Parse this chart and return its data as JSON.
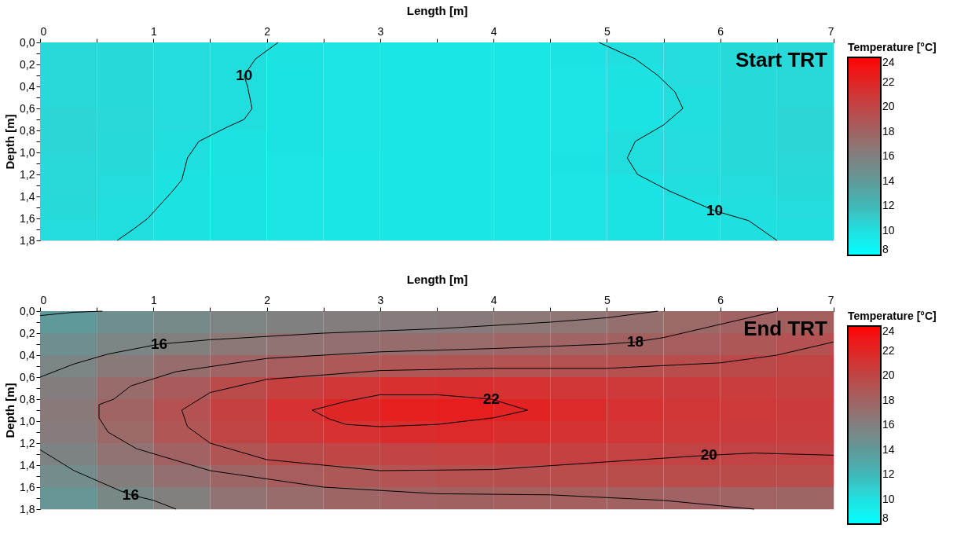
{
  "chart_data": [
    {
      "type": "heatmap",
      "title": "Start TRT",
      "xlabel": "Length [m]",
      "ylabel": "Depth [m]",
      "clabel": "Temperature [°C]",
      "x": [
        0.25,
        0.75,
        1.25,
        1.75,
        2.25,
        2.75,
        3.25,
        3.75,
        4.25,
        4.75,
        5.25,
        5.75,
        6.25,
        6.75
      ],
      "y": [
        0.1,
        0.3,
        0.5,
        0.7,
        0.9,
        1.1,
        1.3,
        1.5,
        1.7
      ],
      "cells": [
        [
          10.4,
          10.3,
          10.2,
          10.1,
          9.9,
          9.7,
          9.6,
          9.6,
          9.6,
          9.8,
          10.1,
          10.2,
          10.3,
          10.4
        ],
        [
          10.4,
          10.3,
          10.2,
          10.1,
          9.8,
          9.7,
          9.6,
          9.6,
          9.6,
          9.7,
          9.9,
          10.2,
          10.3,
          10.4
        ],
        [
          10.4,
          10.3,
          10.2,
          10.1,
          9.8,
          9.7,
          9.6,
          9.6,
          9.6,
          9.7,
          9.8,
          10.1,
          10.3,
          10.4
        ],
        [
          10.5,
          10.4,
          10.2,
          10.1,
          9.8,
          9.7,
          9.6,
          9.6,
          9.6,
          9.7,
          9.8,
          10.1,
          10.3,
          10.5
        ],
        [
          10.5,
          10.3,
          10.1,
          9.9,
          9.8,
          9.7,
          9.6,
          9.6,
          9.6,
          9.7,
          10.1,
          10.2,
          10.3,
          10.5
        ],
        [
          10.4,
          10.3,
          10.0,
          9.9,
          9.7,
          9.6,
          9.6,
          9.6,
          9.6,
          9.8,
          10.1,
          10.2,
          10.3,
          10.4
        ],
        [
          10.4,
          10.2,
          9.9,
          9.8,
          9.7,
          9.6,
          9.6,
          9.6,
          9.6,
          9.7,
          9.8,
          10.1,
          10.2,
          10.3
        ],
        [
          10.3,
          10.1,
          9.9,
          9.8,
          9.7,
          9.6,
          9.6,
          9.6,
          9.6,
          9.7,
          9.8,
          9.9,
          10.1,
          10.2
        ],
        [
          10.2,
          10.1,
          9.9,
          9.8,
          9.7,
          9.6,
          9.6,
          9.6,
          9.6,
          9.7,
          9.8,
          9.9,
          10.0,
          10.1
        ]
      ],
      "xlim": [
        0,
        7
      ],
      "xticks": [
        0,
        {
          "value": 0.5,
          "label": null
        },
        1,
        {
          "value": 1.5,
          "label": null
        },
        2,
        {
          "value": 2.5,
          "label": null
        },
        3,
        {
          "value": 3.5,
          "label": null
        },
        4,
        {
          "value": 4.5,
          "label": null
        },
        5,
        {
          "value": 5.5,
          "label": null
        },
        6,
        {
          "value": 6.5,
          "label": null
        },
        7
      ],
      "ylim": [
        1.8,
        0
      ],
      "yticks": [
        {
          "value": 0,
          "label": "0,0"
        },
        {
          "value": 0.1,
          "label": null
        },
        {
          "value": 0.2,
          "label": "0,2"
        },
        {
          "value": 0.3,
          "label": null
        },
        {
          "value": 0.4,
          "label": "0,4"
        },
        {
          "value": 0.5,
          "label": null
        },
        {
          "value": 0.6,
          "label": "0,6"
        },
        {
          "value": 0.7,
          "label": null
        },
        {
          "value": 0.8,
          "label": "0,8"
        },
        {
          "value": 0.9,
          "label": null
        },
        {
          "value": 1.0,
          "label": "1,0"
        },
        {
          "value": 1.1,
          "label": null
        },
        {
          "value": 1.2,
          "label": "1,2"
        },
        {
          "value": 1.3,
          "label": null
        },
        {
          "value": 1.4,
          "label": "1,4"
        },
        {
          "value": 1.5,
          "label": null
        },
        {
          "value": 1.6,
          "label": "1,6"
        },
        {
          "value": 1.7,
          "label": null
        },
        {
          "value": 1.8,
          "label": "1,8"
        }
      ],
      "clim": [
        8,
        24
      ],
      "cticks": [
        8,
        10,
        12,
        14,
        16,
        18,
        20,
        22,
        24
      ],
      "series": [
        {
          "type": "line",
          "color": "#000000",
          "x": [
            2.1,
            1.9,
            1.8,
            1.83,
            1.87,
            1.8,
            1.65,
            1.4,
            1.3,
            1.25,
            1.17,
            0.95,
            0.82,
            0.68
          ],
          "values": [
            0,
            0.15,
            0.3,
            0.4,
            0.6,
            0.7,
            0.77,
            0.9,
            1.05,
            1.25,
            1.35,
            1.6,
            1.7,
            1.8
          ]
        },
        {
          "type": "line",
          "color": "#000000",
          "x": [
            4.93,
            5.25,
            5.45,
            5.6,
            5.67,
            5.5,
            5.25,
            5.18,
            5.27,
            5.55,
            5.95,
            6.25,
            6.5
          ],
          "values": [
            0,
            0.15,
            0.3,
            0.45,
            0.6,
            0.75,
            0.9,
            1.05,
            1.2,
            1.35,
            1.53,
            1.62,
            1.8
          ]
        }
      ],
      "annotations": [
        {
          "text": "10",
          "x": 1.8,
          "y": 0.3
        },
        {
          "text": "10",
          "x": 5.95,
          "y": 1.53
        }
      ]
    },
    {
      "type": "heatmap",
      "title": "End TRT",
      "xlabel": "Length [m]",
      "ylabel": "Depth [m]",
      "clabel": "Temperature [°C]",
      "x": [
        0.25,
        0.75,
        1.25,
        1.75,
        2.25,
        2.75,
        3.25,
        3.75,
        4.25,
        4.75,
        5.25,
        5.75,
        6.25,
        6.75
      ],
      "y": [
        0.1,
        0.3,
        0.5,
        0.7,
        0.9,
        1.1,
        1.3,
        1.5,
        1.7
      ],
      "cells": [
        [
          14.0,
          14.8,
          15.3,
          15.7,
          16.0,
          16.2,
          16.3,
          16.4,
          16.6,
          16.8,
          17.2,
          17.6,
          18.0,
          18.3
        ],
        [
          14.8,
          15.6,
          16.1,
          16.6,
          16.9,
          17.1,
          17.3,
          17.5,
          17.7,
          17.9,
          18.1,
          18.4,
          18.8,
          19.2
        ],
        [
          15.6,
          16.5,
          17.3,
          17.9,
          18.4,
          18.7,
          18.9,
          19.0,
          19.1,
          19.2,
          19.3,
          19.5,
          19.7,
          20.0
        ],
        [
          16.2,
          17.4,
          18.5,
          19.6,
          20.4,
          21.0,
          21.4,
          21.5,
          21.3,
          21.0,
          20.8,
          20.6,
          20.5,
          20.4
        ],
        [
          16.5,
          17.9,
          19.2,
          20.3,
          21.3,
          21.9,
          22.4,
          22.5,
          22.1,
          21.7,
          21.3,
          21.0,
          20.8,
          20.6
        ],
        [
          16.3,
          17.6,
          18.9,
          20.0,
          20.9,
          21.3,
          21.6,
          21.7,
          21.5,
          21.2,
          21.0,
          20.8,
          20.6,
          20.5
        ],
        [
          15.8,
          16.9,
          18.0,
          19.0,
          19.6,
          19.9,
          20.1,
          20.2,
          20.3,
          20.3,
          20.2,
          20.1,
          20.1,
          20.1
        ],
        [
          15.0,
          16.2,
          17.1,
          17.8,
          18.4,
          18.8,
          19.1,
          19.3,
          19.4,
          19.5,
          19.5,
          19.5,
          19.6,
          19.5
        ],
        [
          14.3,
          15.4,
          16.1,
          16.9,
          17.4,
          17.8,
          18.0,
          18.1,
          18.2,
          18.2,
          18.1,
          18.0,
          17.9,
          17.8
        ]
      ],
      "xlim": [
        0,
        7
      ],
      "xticks": [
        0,
        {
          "value": 0.5,
          "label": null
        },
        1,
        {
          "value": 1.5,
          "label": null
        },
        2,
        {
          "value": 2.5,
          "label": null
        },
        3,
        {
          "value": 3.5,
          "label": null
        },
        4,
        {
          "value": 4.5,
          "label": null
        },
        5,
        {
          "value": 5.5,
          "label": null
        },
        6,
        {
          "value": 6.5,
          "label": null
        },
        7
      ],
      "ylim": [
        1.8,
        0
      ],
      "yticks": [
        {
          "value": 0,
          "label": "0,0"
        },
        {
          "value": 0.1,
          "label": null
        },
        {
          "value": 0.2,
          "label": "0,2"
        },
        {
          "value": 0.3,
          "label": null
        },
        {
          "value": 0.4,
          "label": "0,4"
        },
        {
          "value": 0.5,
          "label": null
        },
        {
          "value": 0.6,
          "label": "0,6"
        },
        {
          "value": 0.7,
          "label": null
        },
        {
          "value": 0.8,
          "label": "0,8"
        },
        {
          "value": 0.9,
          "label": null
        },
        {
          "value": 1.0,
          "label": "1,0"
        },
        {
          "value": 1.1,
          "label": null
        },
        {
          "value": 1.2,
          "label": "1,2"
        },
        {
          "value": 1.3,
          "label": null
        },
        {
          "value": 1.4,
          "label": "1,4"
        },
        {
          "value": 1.5,
          "label": null
        },
        {
          "value": 1.6,
          "label": "1,6"
        },
        {
          "value": 1.7,
          "label": null
        },
        {
          "value": 1.8,
          "label": "1,8"
        }
      ],
      "clim": [
        8,
        24
      ],
      "cticks": [
        8,
        10,
        12,
        14,
        16,
        18,
        20,
        22,
        24
      ],
      "series": [
        {
          "type": "line",
          "color": "#000000",
          "x": [
            0,
            0.3,
            0.55
          ],
          "values": [
            0.04,
            0.01,
            0
          ]
        },
        {
          "type": "line",
          "color": "#000000",
          "x": [
            0,
            0.3,
            0.6,
            1.05,
            1.5,
            2.5,
            3.5,
            4.5,
            5.0,
            5.45
          ],
          "values": [
            0.6,
            0.48,
            0.39,
            0.3,
            0.26,
            0.2,
            0.16,
            0.1,
            0.06,
            0
          ]
        },
        {
          "type": "line",
          "color": "#000000",
          "x": [
            0,
            0.3,
            0.7,
            0.8,
            1.0,
            1.2
          ],
          "values": [
            1.26,
            1.45,
            1.63,
            1.67,
            1.72,
            1.8
          ]
        },
        {
          "type": "line",
          "color": "#000000",
          "x": [
            6.5,
            6.0,
            5.5,
            5.25,
            5.0,
            4.0,
            3.0,
            2.0,
            1.2,
            0.8,
            0.65,
            0.52,
            0.52,
            0.6,
            0.85,
            1.5,
            2.5,
            3.5,
            4.5,
            5.5,
            6.3
          ],
          "values": [
            0,
            0.12,
            0.24,
            0.28,
            0.3,
            0.34,
            0.37,
            0.43,
            0.55,
            0.68,
            0.8,
            0.85,
            0.97,
            1.1,
            1.25,
            1.45,
            1.6,
            1.66,
            1.67,
            1.72,
            1.8
          ]
        },
        {
          "type": "line",
          "color": "#000000",
          "x": [
            7,
            6.5,
            6.0,
            5.0,
            4.0,
            3.0,
            2.0,
            1.5,
            1.25,
            1.3,
            1.5,
            2.0,
            3.0,
            4.0,
            5.0,
            5.9,
            6.3,
            7
          ],
          "values": [
            0.28,
            0.4,
            0.47,
            0.52,
            0.52,
            0.54,
            0.62,
            0.74,
            0.9,
            1.05,
            1.2,
            1.35,
            1.45,
            1.44,
            1.37,
            1.31,
            1.29,
            1.31
          ]
        },
        {
          "type": "line",
          "color": "#000000",
          "x": [
            2.4,
            2.7,
            3.0,
            3.5,
            3.98,
            4.3
          ],
          "values": [
            0.9,
            0.82,
            0.76,
            0.76,
            0.8,
            0.9
          ]
        },
        {
          "type": "line",
          "color": "#000000",
          "x": [
            2.4,
            2.55,
            2.7,
            3.0,
            3.5,
            4.0,
            4.3
          ],
          "values": [
            0.9,
            0.98,
            1.03,
            1.05,
            1.03,
            0.97,
            0.9
          ]
        }
      ],
      "annotations": [
        {
          "text": "16",
          "x": 1.05,
          "y": 0.3
        },
        {
          "text": "16",
          "x": 0.8,
          "y": 1.67
        },
        {
          "text": "18",
          "x": 5.25,
          "y": 0.28
        },
        {
          "text": "22",
          "x": 3.98,
          "y": 0.8
        },
        {
          "text": "20",
          "x": 5.9,
          "y": 1.31
        }
      ]
    }
  ]
}
